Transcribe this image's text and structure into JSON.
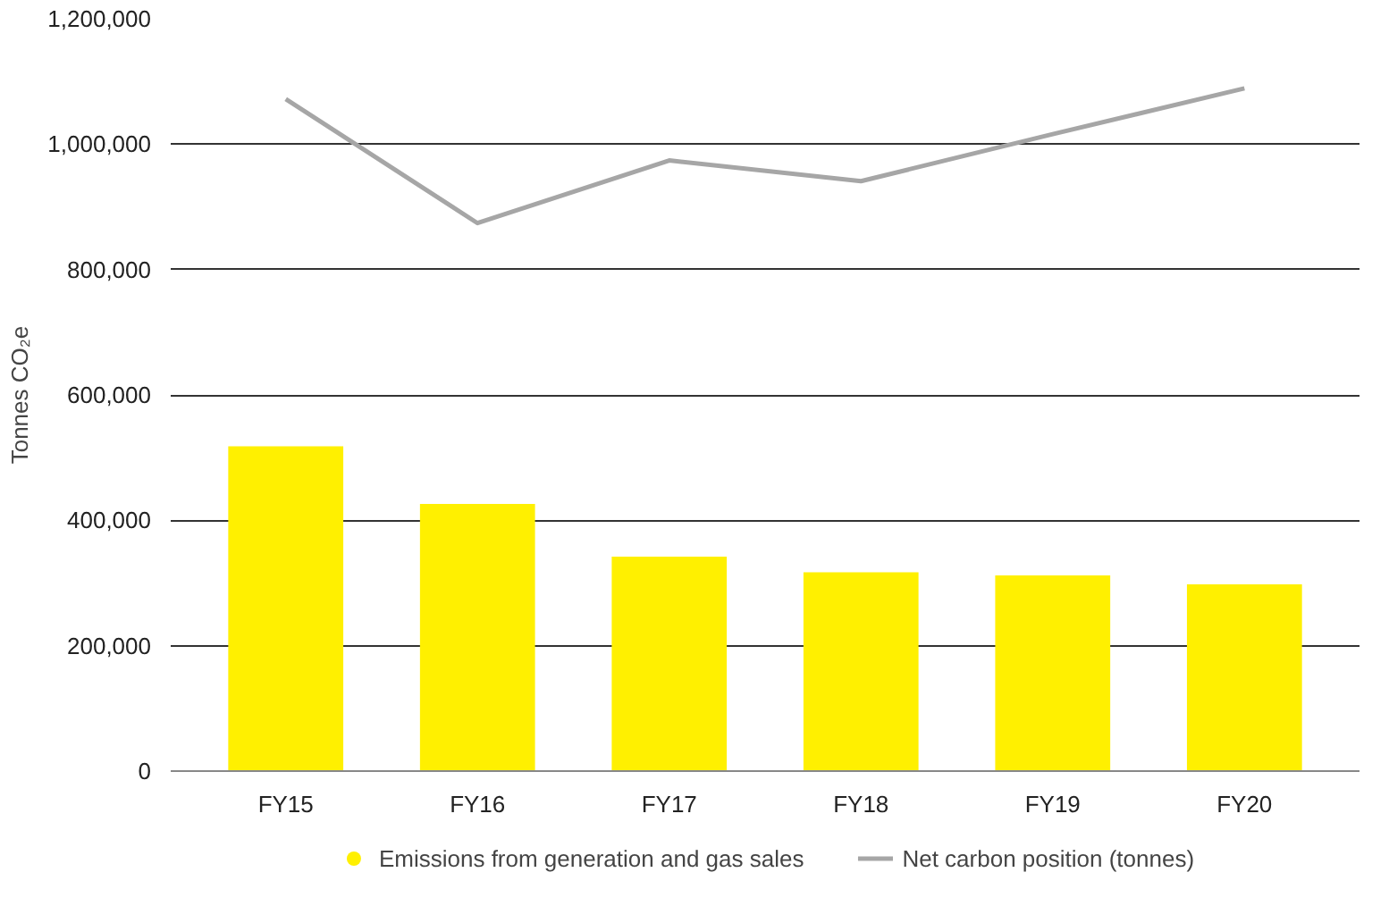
{
  "chart_data": {
    "type": "bar",
    "ylabel": "Tonnes CO₂e",
    "categories": [
      "FY15",
      "FY16",
      "FY17",
      "FY18",
      "FY19",
      "FY20"
    ],
    "series": [
      {
        "name": "Emissions from generation and gas sales",
        "color": "#fff000",
        "values": [
          518000,
          426000,
          342000,
          317000,
          312000,
          298000
        ]
      },
      {
        "name": "Net carbon position (tonnes)",
        "type": "line",
        "color": "#a6a6a6",
        "values": [
          1072000,
          874000,
          974000,
          941000,
          1016000,
          1089000
        ]
      }
    ],
    "ylim": [
      0,
      1200000
    ],
    "yticks": [
      {
        "value": 0,
        "label": "0"
      },
      {
        "value": 200000,
        "label": "200,000"
      },
      {
        "value": 400000,
        "label": "400,000"
      },
      {
        "value": 600000,
        "label": "600,000"
      },
      {
        "value": 800000,
        "label": "800,000"
      },
      {
        "value": 1000000,
        "label": "1,000,000"
      },
      {
        "value": 1200000,
        "label": "1,200,000"
      }
    ],
    "grid": "y",
    "legend": "bottom"
  }
}
